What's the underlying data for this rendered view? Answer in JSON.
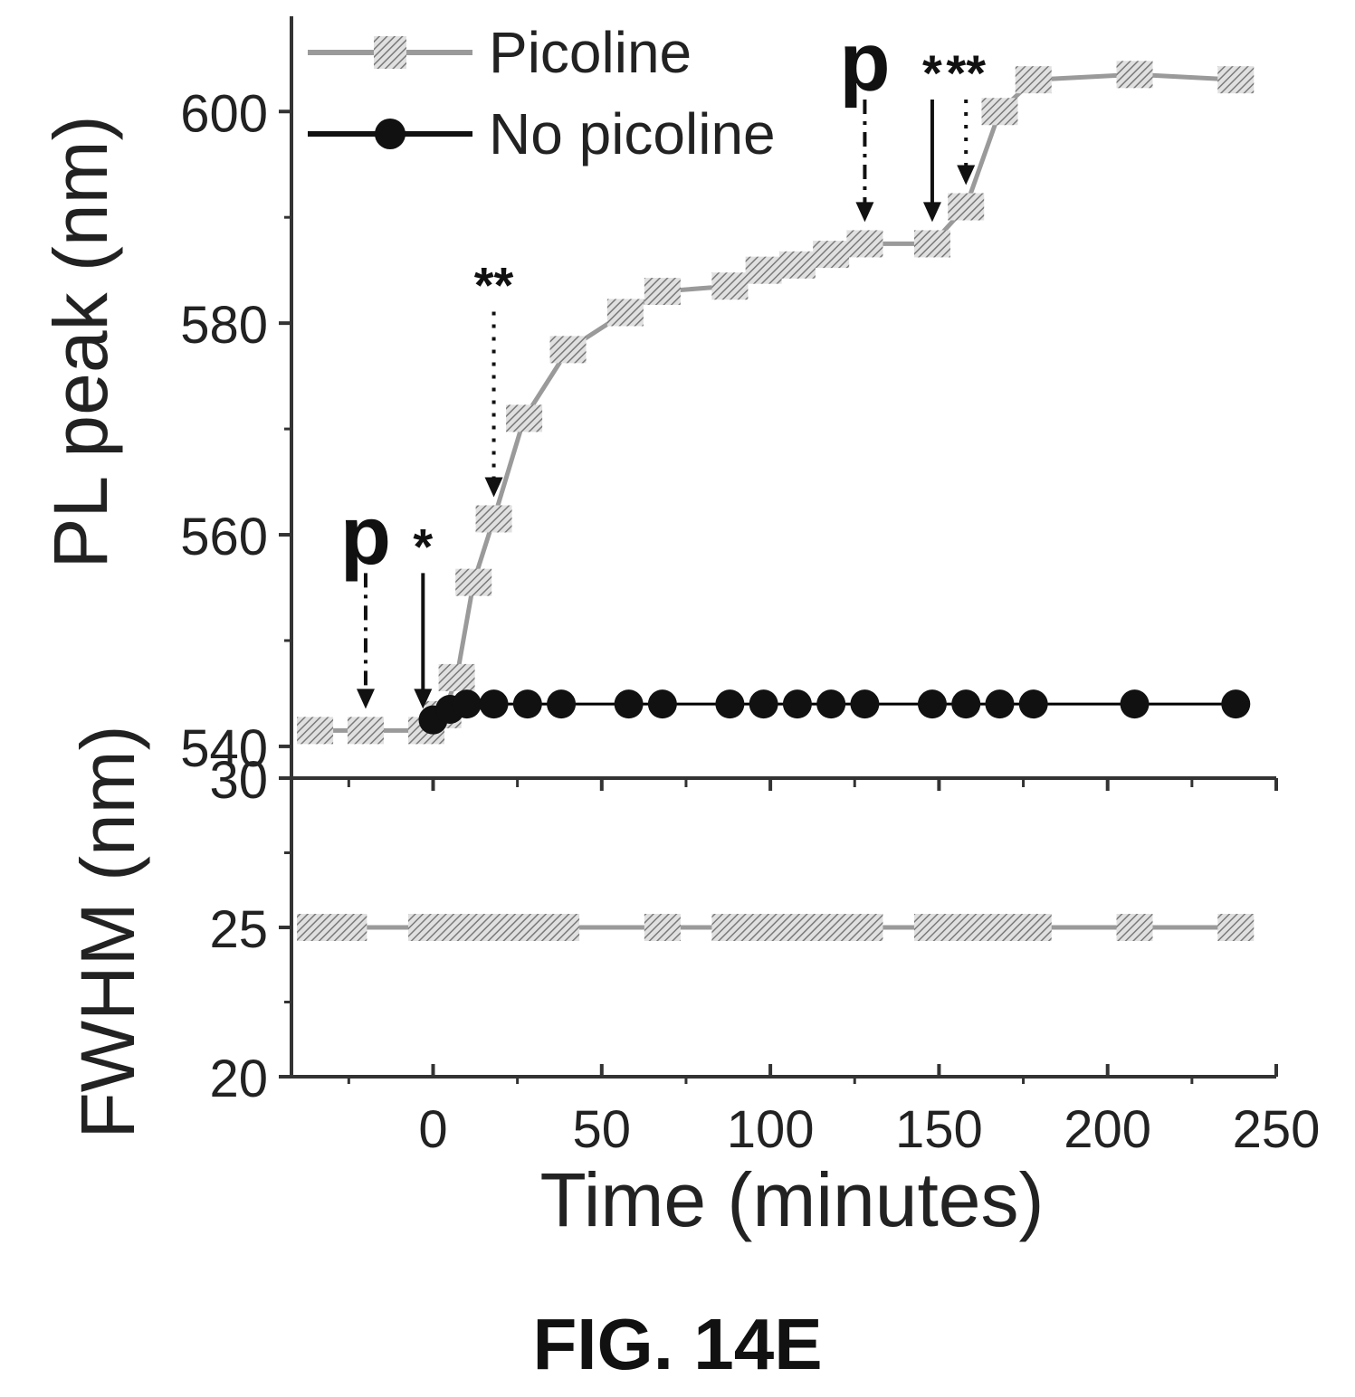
{
  "chart_data": [
    {
      "type": "line",
      "panel": "top",
      "xlabel": "Time (minutes)",
      "ylabel": "PL peak (nm)",
      "xlim": [
        -42,
        250
      ],
      "ylim": [
        537,
        609
      ],
      "x_ticks": [
        "0",
        "50",
        "100",
        "150",
        "200",
        "250"
      ],
      "y_ticks": [
        "540",
        "560",
        "580",
        "600"
      ],
      "legend": {
        "placement": "top-left",
        "entries": [
          "Picoline",
          "No picoline"
        ]
      },
      "series": [
        {
          "name": "Picoline",
          "color": "#9a9a9a",
          "marker": "hatched-square",
          "x": [
            -35,
            -20,
            -2,
            3,
            7,
            12,
            18,
            27,
            40,
            57,
            68,
            88,
            98,
            108,
            118,
            128,
            148,
            158,
            168,
            178,
            208,
            238
          ],
          "y": [
            541.5,
            541.5,
            541.5,
            543,
            546.5,
            555.5,
            561.5,
            571,
            577.5,
            581,
            583,
            583.5,
            585,
            585.5,
            586.5,
            587.5,
            587.5,
            591,
            600,
            603,
            603.5,
            603
          ]
        },
        {
          "name": "No picoline",
          "color": "#000000",
          "marker": "filled-circle",
          "x": [
            0,
            5,
            10,
            18,
            28,
            38,
            58,
            68,
            88,
            98,
            108,
            118,
            128,
            148,
            158,
            168,
            178,
            208,
            238
          ],
          "y": [
            542.5,
            543.5,
            544,
            544,
            544,
            544,
            544,
            544,
            544,
            544,
            544,
            544,
            544,
            544,
            544,
            544,
            544,
            544,
            544
          ]
        }
      ],
      "annotations": [
        {
          "label": "p",
          "x": -20,
          "style": "dash-dot arrow"
        },
        {
          "label": "*",
          "x": -3,
          "style": "solid arrow"
        },
        {
          "label": "**",
          "x": 18,
          "style": "dotted arrow"
        },
        {
          "label": "p",
          "x": 128,
          "style": "dash-dot arrow"
        },
        {
          "label": "*",
          "x": 148,
          "style": "solid arrow"
        },
        {
          "label": "**",
          "x": 158,
          "style": "dotted arrow"
        }
      ]
    },
    {
      "type": "line",
      "panel": "bottom",
      "xlabel": "Time (minutes)",
      "ylabel": "FWHM (nm)",
      "xlim": [
        -42,
        250
      ],
      "ylim": [
        20,
        30
      ],
      "x_ticks": [
        "0",
        "50",
        "100",
        "150",
        "200",
        "250"
      ],
      "y_ticks": [
        "20",
        "25",
        "30"
      ],
      "series": [
        {
          "name": "Picoline",
          "color": "#9a9a9a",
          "marker": "hatched-square",
          "x": [
            -35,
            -25,
            -2,
            3,
            8,
            18,
            28,
            38,
            68,
            88,
            98,
            108,
            118,
            128,
            148,
            158,
            168,
            178,
            208,
            238
          ],
          "y": [
            25,
            25,
            25,
            25,
            25,
            25,
            25,
            25,
            25,
            25,
            25,
            25,
            25,
            25,
            25,
            25,
            25,
            25,
            25,
            25
          ]
        }
      ]
    }
  ],
  "figure": {
    "caption": "FIG. 14E"
  }
}
